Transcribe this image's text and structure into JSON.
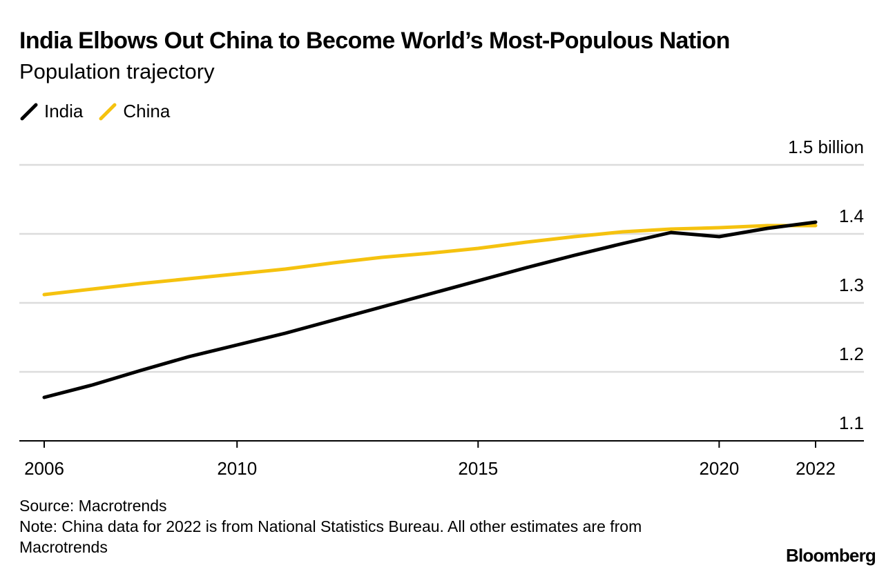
{
  "header": {
    "title": "India Elbows Out China to Become World’s Most-Populous Nation",
    "subtitle": "Population trajectory"
  },
  "legend": [
    {
      "label": "India",
      "color": "#000000",
      "icon": "line-stroke-icon"
    },
    {
      "label": "China",
      "color": "#f5c20f",
      "icon": "line-stroke-icon"
    }
  ],
  "chart_data": {
    "type": "line",
    "x": [
      2006,
      2007,
      2008,
      2009,
      2010,
      2011,
      2012,
      2013,
      2014,
      2015,
      2016,
      2017,
      2018,
      2019,
      2020,
      2021,
      2022
    ],
    "series": [
      {
        "name": "India",
        "color": "#000000",
        "values": [
          1.163,
          1.181,
          1.202,
          1.222,
          1.239,
          1.256,
          1.275,
          1.294,
          1.313,
          1.332,
          1.351,
          1.369,
          1.386,
          1.402,
          1.396,
          1.408,
          1.417
        ]
      },
      {
        "name": "China",
        "color": "#f5c20f",
        "values": [
          1.312,
          1.32,
          1.328,
          1.335,
          1.342,
          1.349,
          1.358,
          1.366,
          1.372,
          1.379,
          1.388,
          1.396,
          1.403,
          1.407,
          1.409,
          1.412,
          1.412
        ]
      }
    ],
    "xticks": [
      2006,
      2010,
      2015,
      2020,
      2022
    ],
    "xtick_labels": [
      "2006",
      "2010",
      "2015",
      "2020",
      "2022"
    ],
    "yticks": [
      1.1,
      1.2,
      1.3,
      1.4,
      1.5
    ],
    "ytick_labels": [
      "1.1",
      "1.2",
      "1.3",
      "1.4",
      "1.5 billion"
    ],
    "xlim": [
      2006,
      2022
    ],
    "ylim": [
      1.1,
      1.5
    ],
    "grid": true,
    "legend_position": "top-left",
    "xlabel": "",
    "ylabel": ""
  },
  "footer": {
    "source": "Source: Macrotrends",
    "note": "Note: China data for 2022 is from National Statistics Bureau. All other estimates are from Macrotrends",
    "brand": "Bloomberg"
  }
}
